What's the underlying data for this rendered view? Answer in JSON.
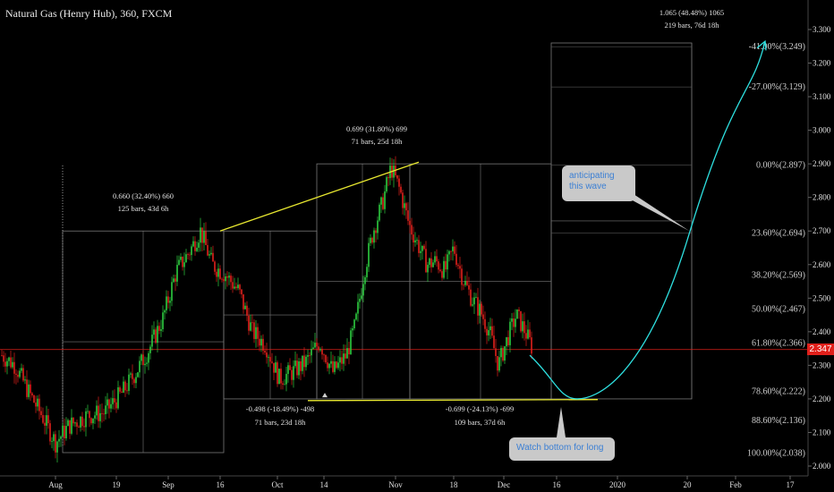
{
  "header": {
    "title": "Natural Gas (Henry Hub), 360, FXCM"
  },
  "colors": {
    "up": "#2ecc40",
    "down": "#e0201b",
    "trendline": "#e8e830",
    "projection": "#2ee0e0",
    "fib": "#8a8a8a",
    "price_line": "#e0201b"
  },
  "chart_data": {
    "type": "candlestick",
    "title": "Natural Gas (Henry Hub), 360, FXCM",
    "ylim": [
      1.98,
      3.36
    ],
    "y_ticks": [
      "2.000",
      "2.100",
      "2.200",
      "2.300",
      "2.400",
      "2.500",
      "2.600",
      "2.700",
      "2.800",
      "2.900",
      "3.000",
      "3.100",
      "3.200",
      "3.300"
    ],
    "x_ticks": [
      "Aug",
      "19",
      "Sep",
      "16",
      "Oct",
      "14",
      "Nov",
      "18",
      "Dec",
      "16",
      "2020",
      "20",
      "Feb",
      "17"
    ],
    "last_price": "2.347",
    "price_path": [
      {
        "bar": 0,
        "price": 2.33
      },
      {
        "bar": 15,
        "price": 2.3
      },
      {
        "bar": 30,
        "price": 2.22
      },
      {
        "bar": 45,
        "price": 2.15
      },
      {
        "bar": 60,
        "price": 2.07
      },
      {
        "bar": 75,
        "price": 2.12
      },
      {
        "bar": 95,
        "price": 2.15
      },
      {
        "bar": 115,
        "price": 2.16
      },
      {
        "bar": 135,
        "price": 2.22
      },
      {
        "bar": 150,
        "price": 2.28
      },
      {
        "bar": 165,
        "price": 2.35
      },
      {
        "bar": 180,
        "price": 2.44
      },
      {
        "bar": 195,
        "price": 2.58
      },
      {
        "bar": 210,
        "price": 2.64
      },
      {
        "bar": 222,
        "price": 2.7
      },
      {
        "bar": 235,
        "price": 2.6
      },
      {
        "bar": 250,
        "price": 2.57
      },
      {
        "bar": 265,
        "price": 2.52
      },
      {
        "bar": 280,
        "price": 2.4
      },
      {
        "bar": 295,
        "price": 2.36
      },
      {
        "bar": 310,
        "price": 2.26
      },
      {
        "bar": 325,
        "price": 2.28
      },
      {
        "bar": 340,
        "price": 2.31
      },
      {
        "bar": 355,
        "price": 2.37
      },
      {
        "bar": 370,
        "price": 2.28
      },
      {
        "bar": 385,
        "price": 2.33
      },
      {
        "bar": 395,
        "price": 2.42
      },
      {
        "bar": 405,
        "price": 2.58
      },
      {
        "bar": 415,
        "price": 2.7
      },
      {
        "bar": 425,
        "price": 2.78
      },
      {
        "bar": 435,
        "price": 2.89
      },
      {
        "bar": 445,
        "price": 2.82
      },
      {
        "bar": 455,
        "price": 2.72
      },
      {
        "bar": 465,
        "price": 2.66
      },
      {
        "bar": 475,
        "price": 2.6
      },
      {
        "bar": 485,
        "price": 2.61
      },
      {
        "bar": 495,
        "price": 2.58
      },
      {
        "bar": 505,
        "price": 2.65
      },
      {
        "bar": 515,
        "price": 2.56
      },
      {
        "bar": 525,
        "price": 2.5
      },
      {
        "bar": 535,
        "price": 2.46
      },
      {
        "bar": 545,
        "price": 2.4
      },
      {
        "bar": 555,
        "price": 2.3
      },
      {
        "bar": 565,
        "price": 2.38
      },
      {
        "bar": 575,
        "price": 2.45
      },
      {
        "bar": 585,
        "price": 2.4
      },
      {
        "bar": 593,
        "price": 2.35
      }
    ],
    "fib_levels": [
      {
        "label": "-41.00%(3.249)",
        "price": 3.249
      },
      {
        "label": "-27.00%(3.129)",
        "price": 3.129
      },
      {
        "label": "0.00%(2.897)",
        "price": 2.897
      },
      {
        "label": "23.60%(2.694)",
        "price": 2.694
      },
      {
        "label": "38.20%(2.569)",
        "price": 2.569
      },
      {
        "label": "50.00%(2.467)",
        "price": 2.467
      },
      {
        "label": "61.80%(2.366)",
        "price": 2.366
      },
      {
        "label": "78.60%(2.222)",
        "price": 2.222
      },
      {
        "label": "88.60%(2.136)",
        "price": 2.136
      },
      {
        "label": "100.00%(2.038)",
        "price": 2.038
      }
    ],
    "measurements": [
      {
        "line1": "0.660 (32.40%) 660",
        "line2": "125 bars, 43d 6h"
      },
      {
        "line1": "0.699 (31.80%) 699",
        "line2": "71 bars, 25d 18h"
      },
      {
        "line1": "-0.498 (-18.49%) -498",
        "line2": "71 bars, 23d 18h"
      },
      {
        "line1": "-0.699 (-24.13%) -699",
        "line2": "109 bars, 37d 6h"
      },
      {
        "line1": "1.065 (48.48%) 1065",
        "line2": "219 bars, 76d 18h"
      }
    ],
    "annotations": [
      {
        "id": "anticipate",
        "text": "anticipating this wave"
      },
      {
        "id": "bottom",
        "text": "Watch bottom for long"
      }
    ]
  }
}
